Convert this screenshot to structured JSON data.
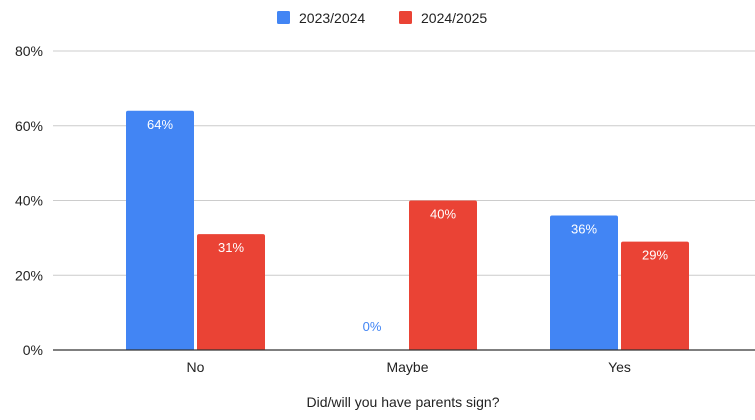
{
  "chart_data": {
    "type": "bar",
    "title": "",
    "xlabel": "Did/will you have parents sign?",
    "ylabel": "",
    "categories": [
      "No",
      "Maybe",
      "Yes"
    ],
    "series": [
      {
        "name": "2023/2024",
        "values": [
          64,
          0,
          36
        ],
        "labels": [
          "64%",
          "0%",
          "36%"
        ],
        "color": "#4285f4"
      },
      {
        "name": "2024/2025",
        "values": [
          31,
          40,
          29
        ],
        "labels": [
          "31%",
          "40%",
          "29%"
        ],
        "color": "#ea4335"
      }
    ],
    "ylim": [
      0,
      80
    ],
    "yticks": [
      0,
      20,
      40,
      60,
      80
    ],
    "ytick_labels": [
      "0%",
      "20%",
      "40%",
      "60%",
      "80%"
    ],
    "grid": true,
    "legend": "top-center",
    "colors": {
      "grid": "#cccccc",
      "axis": "#333333",
      "text": "#222222",
      "label_on_bar": "#ffffff"
    }
  }
}
